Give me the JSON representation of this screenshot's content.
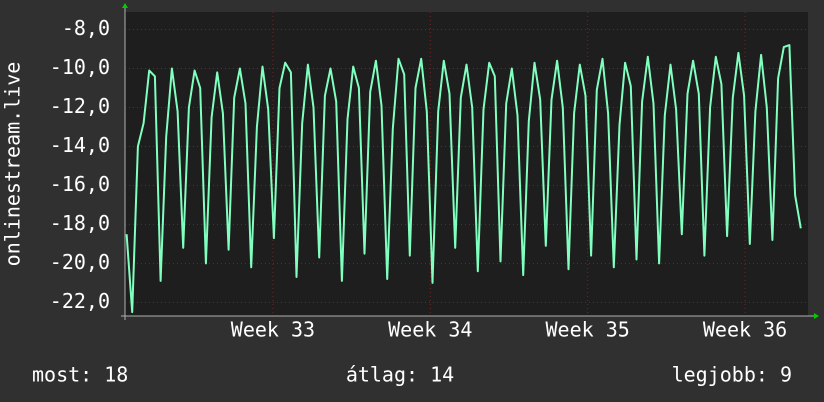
{
  "chart_data": {
    "type": "line",
    "y_label": "onlinestream.live",
    "xlim": [
      32.06,
      36.4
    ],
    "xticks": [
      {
        "value": 33,
        "label": "Week 33"
      },
      {
        "value": 34,
        "label": "Week 34"
      },
      {
        "value": 35,
        "label": "Week 35"
      },
      {
        "value": 36,
        "label": "Week 36"
      }
    ],
    "ylim": [
      -22.7,
      -7.1
    ],
    "yticks": [
      {
        "value": -8,
        "label": "-8,0"
      },
      {
        "value": -10,
        "label": "-10,0"
      },
      {
        "value": -12,
        "label": "-12,0"
      },
      {
        "value": -14,
        "label": "-14,0"
      },
      {
        "value": -16,
        "label": "-16,0"
      },
      {
        "value": -18,
        "label": "-18,0"
      },
      {
        "value": -20,
        "label": "-20,0"
      },
      {
        "value": -22,
        "label": "-22,0"
      }
    ],
    "grid": true,
    "x": [
      32.07,
      32.106,
      32.142,
      32.178,
      32.214,
      32.25,
      32.286,
      32.322,
      32.358,
      32.394,
      32.43,
      32.466,
      32.502,
      32.538,
      32.574,
      32.61,
      32.646,
      32.682,
      32.718,
      32.754,
      32.79,
      32.826,
      32.862,
      32.898,
      32.934,
      32.97,
      33.006,
      33.042,
      33.078,
      33.114,
      33.15,
      33.186,
      33.222,
      33.258,
      33.294,
      33.33,
      33.366,
      33.402,
      33.438,
      33.474,
      33.51,
      33.546,
      33.582,
      33.618,
      33.654,
      33.69,
      33.726,
      33.762,
      33.798,
      33.834,
      33.87,
      33.906,
      33.942,
      33.978,
      34.014,
      34.05,
      34.086,
      34.122,
      34.158,
      34.194,
      34.23,
      34.266,
      34.302,
      34.338,
      34.374,
      34.41,
      34.446,
      34.482,
      34.518,
      34.554,
      34.59,
      34.626,
      34.662,
      34.698,
      34.734,
      34.77,
      34.806,
      34.842,
      34.878,
      34.914,
      34.95,
      34.986,
      35.022,
      35.058,
      35.094,
      35.13,
      35.166,
      35.202,
      35.238,
      35.274,
      35.31,
      35.346,
      35.382,
      35.418,
      35.454,
      35.49,
      35.526,
      35.562,
      35.598,
      35.634,
      35.67,
      35.706,
      35.742,
      35.778,
      35.814,
      35.85,
      35.886,
      35.922,
      35.958,
      35.994,
      36.03,
      36.066,
      36.102,
      36.138,
      36.174,
      36.21,
      36.246,
      36.282,
      36.318,
      36.354
    ],
    "series": [
      {
        "color": "#80ffbf",
        "values": [
          -18.5,
          -22.5,
          -14.0,
          -12.8,
          -10.1,
          -10.4,
          -20.9,
          -13.5,
          -10.0,
          -12.2,
          -19.2,
          -12.0,
          -10.1,
          -11.0,
          -20.0,
          -12.5,
          -10.2,
          -12.3,
          -19.3,
          -11.5,
          -10.0,
          -11.8,
          -20.2,
          -13.0,
          -9.9,
          -12.1,
          -18.7,
          -11.0,
          -9.7,
          -10.2,
          -20.7,
          -12.8,
          -9.8,
          -12.0,
          -19.7,
          -11.4,
          -10.0,
          -11.7,
          -20.9,
          -12.6,
          -9.9,
          -11.0,
          -19.5,
          -11.2,
          -9.6,
          -11.9,
          -20.8,
          -13.1,
          -9.5,
          -10.3,
          -19.6,
          -11.0,
          -9.5,
          -12.2,
          -21.0,
          -12.2,
          -9.6,
          -11.3,
          -19.2,
          -11.5,
          -9.8,
          -12.0,
          -20.4,
          -12.1,
          -9.7,
          -10.4,
          -19.9,
          -11.8,
          -10.0,
          -12.4,
          -20.6,
          -12.7,
          -9.7,
          -11.6,
          -19.1,
          -11.6,
          -9.6,
          -12.0,
          -20.3,
          -12.3,
          -9.8,
          -11.4,
          -19.6,
          -11.1,
          -9.5,
          -12.3,
          -20.2,
          -12.9,
          -9.7,
          -10.9,
          -19.8,
          -11.7,
          -9.4,
          -11.8,
          -20.0,
          -12.4,
          -9.8,
          -12.1,
          -18.5,
          -11.3,
          -9.6,
          -11.3,
          -19.6,
          -12.0,
          -9.4,
          -10.8,
          -18.6,
          -11.5,
          -9.2,
          -11.4,
          -19.0,
          -12.2,
          -9.3,
          -12.0,
          -18.8,
          -10.5,
          -8.9,
          -8.8,
          -16.5,
          -18.2
        ]
      }
    ]
  },
  "footer": {
    "current": "most: 18",
    "average": "átlag: 14",
    "best": "legjobb: 9"
  }
}
